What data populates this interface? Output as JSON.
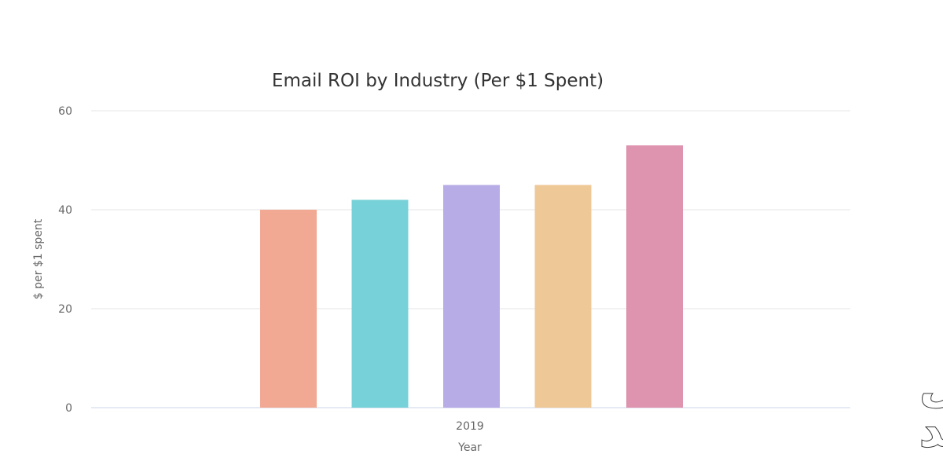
{
  "chart_data": {
    "type": "bar",
    "title": "Email ROI by Industry (Per $1 Spent)",
    "xlabel": "Year",
    "ylabel": "$ per $1 spent",
    "categories": [
      "2019"
    ],
    "series": [
      {
        "values": [
          40
        ],
        "color": "#f2a994"
      },
      {
        "values": [
          42
        ],
        "color": "#77d1d8"
      },
      {
        "values": [
          45
        ],
        "color": "#b8ace6"
      },
      {
        "values": [
          45
        ],
        "color": "#efc897"
      },
      {
        "values": [
          53
        ],
        "color": "#de93ae"
      }
    ],
    "ylim": [
      0,
      60
    ],
    "yticks": [
      "0",
      "20",
      "40",
      "60"
    ],
    "grid": true,
    "legend": "none"
  },
  "watermark": {
    "line1": "مستعمل",
    "line2": "وجديد"
  }
}
